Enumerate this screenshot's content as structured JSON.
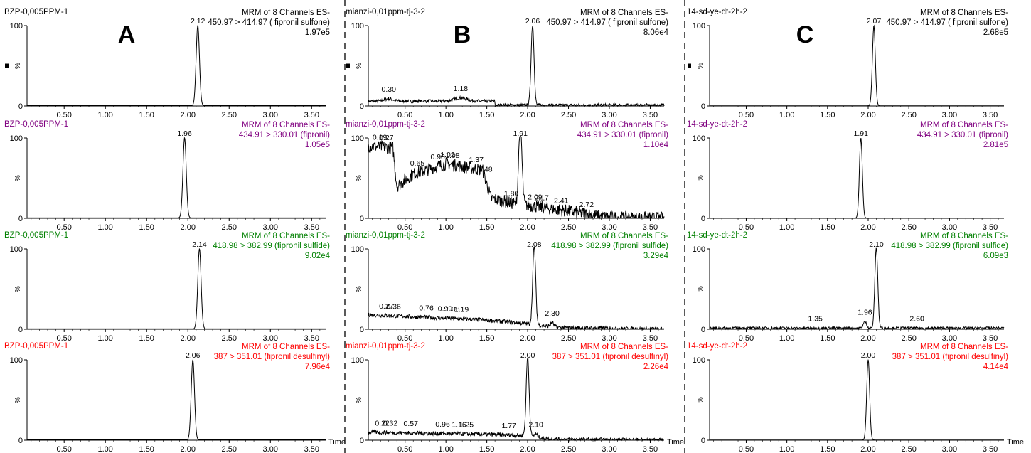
{
  "colors": {
    "line": "#000000",
    "channels": [
      "#000000",
      "#800080",
      "#008000",
      "#ff0000"
    ]
  },
  "time_label": "Time",
  "chart_data": [
    {
      "type": "line",
      "panel": "A",
      "xlim": [
        0.05,
        3.67
      ],
      "xticks": [
        "0.50",
        "1.00",
        "1.50",
        "2.00",
        "2.50",
        "3.00",
        "3.50"
      ],
      "traces": [
        {
          "sample": "BZP-0,005PPM-1",
          "header": [
            "MRM of 8 Channels ES-",
            "450.97 > 414.97 ( fipronil sulfone)",
            "1.97e5"
          ],
          "yticks": [
            "0",
            "%",
            "100"
          ],
          "peak_labels": [
            {
              "x": 2.12,
              "label": "2.12"
            }
          ],
          "series": [
            {
              "peaks": [
                {
                  "x": 2.12,
                  "h": 100,
                  "w": 0.02
                }
              ],
              "baseline": 0.5,
              "noise": 0
            }
          ]
        },
        {
          "sample": "BZP-0,005PPM-1",
          "header": [
            "MRM of 8 Channels ES-",
            "434.91 > 330.01 (fipronil)",
            "1.05e5"
          ],
          "yticks": [
            "0",
            "%",
            "100"
          ],
          "peak_labels": [
            {
              "x": 1.96,
              "label": "1.96"
            }
          ],
          "series": [
            {
              "peaks": [
                {
                  "x": 1.96,
                  "h": 100,
                  "w": 0.02
                }
              ],
              "baseline": 0.5,
              "noise": 0
            }
          ]
        },
        {
          "sample": "BZP-0,005PPM-1",
          "header": [
            "MRM of 8 Channels ES-",
            "418.98 > 382.99 (fipronil sulfide)",
            "9.02e4"
          ],
          "yticks": [
            "0",
            "%",
            "100"
          ],
          "peak_labels": [
            {
              "x": 2.14,
              "label": "2.14"
            }
          ],
          "series": [
            {
              "peaks": [
                {
                  "x": 2.14,
                  "h": 100,
                  "w": 0.02
                }
              ],
              "baseline": 0.5,
              "noise": 0
            }
          ]
        },
        {
          "sample": "BZP-0,005PPM-1",
          "header": [
            "MRM of 8 Channels ES-",
            "387 > 351.01 (fipronil desulfinyl)",
            "7.96e4"
          ],
          "yticks": [
            "0",
            "%",
            "100"
          ],
          "peak_labels": [
            {
              "x": 2.06,
              "label": "2.06"
            }
          ],
          "series": [
            {
              "peaks": [
                {
                  "x": 2.06,
                  "h": 100,
                  "w": 0.02
                }
              ],
              "baseline": 0.5,
              "noise": 0
            }
          ]
        }
      ]
    },
    {
      "type": "line",
      "panel": "B",
      "xlim": [
        0.05,
        3.67
      ],
      "xticks": [
        "0.50",
        "1.00",
        "1.50",
        "2.00",
        "2.50",
        "3.00",
        "3.50"
      ],
      "traces": [
        {
          "sample": "mianzi-0,01ppm-tj-3-2",
          "header": [
            "MRM of 8 Channels ES-",
            "450.97 > 414.97 ( fipronil sulfone)",
            "8.06e4"
          ],
          "yticks": [
            "0",
            "%",
            "100"
          ],
          "peak_labels": [
            {
              "x": 0.3,
              "label": "0.30"
            },
            {
              "x": 1.18,
              "label": "1.18"
            },
            {
              "x": 2.06,
              "label": "2.06"
            }
          ],
          "series": [
            {
              "peaks": [
                {
                  "x": 2.06,
                  "h": 100,
                  "w": 0.018
                },
                {
                  "x": 0.3,
                  "h": 3,
                  "w": 0.05
                },
                {
                  "x": 1.18,
                  "h": 4,
                  "w": 0.08
                }
              ],
              "baseline": 6,
              "noise": 2,
              "cutoff": 1.6
            }
          ]
        },
        {
          "sample": "mianzi-0,01ppm-tj-3-2",
          "header": [
            "MRM of 8 Channels ES-",
            "434.91 > 330.01 (fipronil)",
            "1.10e4"
          ],
          "yticks": [
            "0",
            "%",
            "100"
          ],
          "peak_labels": [
            {
              "x": 0.19,
              "label": "0.19"
            },
            {
              "x": 0.27,
              "label": "0.27"
            },
            {
              "x": 0.65,
              "label": "0.65"
            },
            {
              "x": 0.9,
              "label": "0.90"
            },
            {
              "x": 1.02,
              "label": "1.02"
            },
            {
              "x": 1.08,
              "label": "1.08"
            },
            {
              "x": 1.37,
              "label": "1.37"
            },
            {
              "x": 1.48,
              "label": "1.48"
            },
            {
              "x": 1.8,
              "label": "1.80"
            },
            {
              "x": 1.91,
              "label": "1.91"
            },
            {
              "x": 2.09,
              "label": "2.09"
            },
            {
              "x": 2.17,
              "label": "2.17"
            },
            {
              "x": 2.41,
              "label": "2.41"
            },
            {
              "x": 2.72,
              "label": "2.72"
            }
          ],
          "series": [
            {
              "peaks": [
                {
                  "x": 1.91,
                  "h": 100,
                  "w": 0.02
                }
              ],
              "baseline": 0,
              "noise": 8,
              "segments": [
                [
                  0.05,
                  90
                ],
                [
                  0.35,
                  88
                ],
                [
                  0.4,
                  40
                ],
                [
                  0.6,
                  55
                ],
                [
                  1.0,
                  68
                ],
                [
                  1.45,
                  60
                ],
                [
                  1.55,
                  25
                ],
                [
                  1.85,
                  18
                ],
                [
                  2.3,
                  12
                ],
                [
                  2.75,
                  5
                ],
                [
                  3.0,
                  1
                ],
                [
                  3.67,
                  0
                ]
              ]
            }
          ]
        },
        {
          "sample": "mianzi-0,01ppm-tj-3-2",
          "header": [
            "MRM of 8 Channels ES-",
            "418.98 > 382.99 (fipronil sulfide)",
            "3.29e4"
          ],
          "yticks": [
            "0",
            "%",
            "100"
          ],
          "peak_labels": [
            {
              "x": 0.27,
              "label": "0.27"
            },
            {
              "x": 0.36,
              "label": "0.36"
            },
            {
              "x": 0.76,
              "label": "0.76"
            },
            {
              "x": 0.99,
              "label": "0.99"
            },
            {
              "x": 1.08,
              "label": "1.08"
            },
            {
              "x": 1.19,
              "label": "1.19"
            },
            {
              "x": 2.08,
              "label": "2.08"
            },
            {
              "x": 2.3,
              "label": "2.30"
            }
          ],
          "series": [
            {
              "peaks": [
                {
                  "x": 2.08,
                  "h": 100,
                  "w": 0.018
                },
                {
                  "x": 2.3,
                  "h": 5,
                  "w": 0.02
                }
              ],
              "baseline": 0,
              "noise": 2.5,
              "segments": [
                [
                  0.05,
                  18
                ],
                [
                  1.4,
                  12
                ],
                [
                  1.9,
                  8
                ],
                [
                  2.4,
                  2
                ],
                [
                  3.67,
                  0
                ]
              ]
            }
          ]
        },
        {
          "sample": "mianzi-0,01ppm-tj-3-2",
          "header": [
            "MRM of 8 Channels ES-",
            "387 > 351.01 (fipronil desulfinyl)",
            "2.26e4"
          ],
          "yticks": [
            "0",
            "%",
            "100"
          ],
          "peak_labels": [
            {
              "x": 0.22,
              "label": "0.22"
            },
            {
              "x": 0.32,
              "label": "0.32"
            },
            {
              "x": 0.57,
              "label": "0.57"
            },
            {
              "x": 0.96,
              "label": "0.96"
            },
            {
              "x": 1.16,
              "label": "1.16"
            },
            {
              "x": 1.25,
              "label": "1.25"
            },
            {
              "x": 1.77,
              "label": "1.77"
            },
            {
              "x": 2.0,
              "label": "2.00"
            },
            {
              "x": 2.1,
              "label": "2.10"
            }
          ],
          "series": [
            {
              "peaks": [
                {
                  "x": 2.0,
                  "h": 100,
                  "w": 0.018
                },
                {
                  "x": 2.1,
                  "h": 4,
                  "w": 0.02
                }
              ],
              "baseline": 0,
              "noise": 2.5,
              "segments": [
                [
                  0.05,
                  10
                ],
                [
                  1.6,
                  7
                ],
                [
                  1.95,
                  6
                ],
                [
                  2.3,
                  1
                ],
                [
                  3.67,
                  0
                ]
              ]
            }
          ]
        }
      ]
    },
    {
      "type": "line",
      "panel": "C",
      "xlim": [
        0.05,
        3.67
      ],
      "xticks": [
        "0.50",
        "1.00",
        "1.50",
        "2.00",
        "2.50",
        "3.00",
        "3.50"
      ],
      "traces": [
        {
          "sample": "14-sd-ye-dt-2h-2",
          "header": [
            "MRM of 8 Channels ES-",
            "450.97 > 414.97 ( fipronil sulfone)",
            "2.68e5"
          ],
          "yticks": [
            "0",
            "%",
            "100"
          ],
          "peak_labels": [
            {
              "x": 2.07,
              "label": "2.07"
            }
          ],
          "series": [
            {
              "peaks": [
                {
                  "x": 2.07,
                  "h": 100,
                  "w": 0.018
                }
              ],
              "baseline": 0.3,
              "noise": 0
            }
          ]
        },
        {
          "sample": "14-sd-ye-dt-2h-2",
          "header": [
            "MRM of 8 Channels ES-",
            "434.91 > 330.01 (fipronil)",
            "2.81e5"
          ],
          "yticks": [
            "0",
            "%",
            "100"
          ],
          "peak_labels": [
            {
              "x": 1.91,
              "label": "1.91"
            }
          ],
          "series": [
            {
              "peaks": [
                {
                  "x": 1.91,
                  "h": 100,
                  "w": 0.018
                }
              ],
              "baseline": 0.3,
              "noise": 0
            }
          ]
        },
        {
          "sample": "14-sd-ye-dt-2h-2",
          "header": [
            "MRM of 8 Channels ES-",
            "418.98 > 382.99 (fipronil sulfide)",
            "6.09e3"
          ],
          "yticks": [
            "0",
            "%",
            "100"
          ],
          "peak_labels": [
            {
              "x": 1.35,
              "label": "1.35"
            },
            {
              "x": 1.96,
              "label": "1.96"
            },
            {
              "x": 2.1,
              "label": "2.10"
            },
            {
              "x": 2.6,
              "label": "2.60"
            }
          ],
          "series": [
            {
              "peaks": [
                {
                  "x": 2.1,
                  "h": 100,
                  "w": 0.018
                },
                {
                  "x": 1.96,
                  "h": 8,
                  "w": 0.02
                }
              ],
              "baseline": 1.5,
              "noise": 1.5
            }
          ]
        },
        {
          "sample": "14-sd-ye-dt-2h-2",
          "header": [
            "MRM of 8 Channels ES-",
            "387 > 351.01 (fipronil desulfinyl)",
            "4.14e4"
          ],
          "yticks": [
            "0",
            "%",
            "100"
          ],
          "peak_labels": [
            {
              "x": 2.0,
              "label": "2.00"
            }
          ],
          "series": [
            {
              "peaks": [
                {
                  "x": 2.0,
                  "h": 100,
                  "w": 0.018
                }
              ],
              "baseline": 0.3,
              "noise": 0
            }
          ]
        }
      ]
    }
  ],
  "panel_letters": [
    "A",
    "B",
    "C"
  ]
}
